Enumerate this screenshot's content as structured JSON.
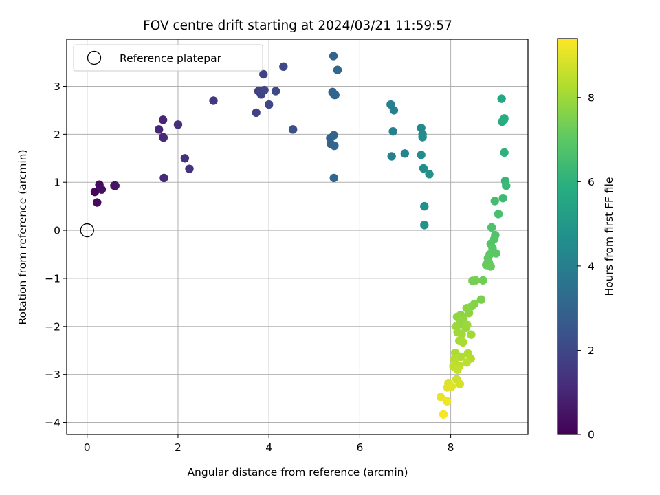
{
  "chart_data": {
    "type": "scatter",
    "title": "FOV centre drift starting at 2024/03/21 11:59:57",
    "xlabel": "Angular distance from reference (arcmin)",
    "ylabel": "Rotation from reference (arcmin)",
    "xlim": [
      -0.45,
      9.7
    ],
    "ylim": [
      -4.25,
      3.98
    ],
    "xticks": [
      0,
      2,
      4,
      6,
      8
    ],
    "yticks": [
      -4,
      -3,
      -2,
      -1,
      0,
      1,
      2,
      3
    ],
    "xtick_labels": [
      "0",
      "2",
      "4",
      "6",
      "8"
    ],
    "ytick_labels": [
      "−4",
      "−3",
      "−2",
      "−1",
      "0",
      "1",
      "2",
      "3"
    ],
    "grid": true,
    "legend": {
      "placement": "upper-left",
      "entries": [
        "Reference platepar"
      ]
    },
    "reference_point": {
      "x": 0,
      "y": 0,
      "label": "Reference platepar"
    },
    "colorbar": {
      "label": "Hours from first FF file",
      "colormap": "viridis",
      "range": [
        0,
        9.4
      ],
      "ticks": [
        0,
        2,
        4,
        6,
        8
      ],
      "tick_labels": [
        "0",
        "2",
        "4",
        "6",
        "8"
      ]
    },
    "points": [
      {
        "x": 0.17,
        "y": 0.8,
        "h": 0.15
      },
      {
        "x": 0.22,
        "y": 0.58,
        "h": 0.25
      },
      {
        "x": 0.27,
        "y": 0.95,
        "h": 0.3
      },
      {
        "x": 0.32,
        "y": 0.85,
        "h": 0.4
      },
      {
        "x": 0.6,
        "y": 0.93,
        "h": 0.5
      },
      {
        "x": 0.62,
        "y": 0.93,
        "h": 0.55
      },
      {
        "x": 1.58,
        "y": 2.1,
        "h": 1.0
      },
      {
        "x": 1.67,
        "y": 2.3,
        "h": 1.0
      },
      {
        "x": 1.67,
        "y": 1.94,
        "h": 1.05
      },
      {
        "x": 1.69,
        "y": 1.09,
        "h": 1.1
      },
      {
        "x": 1.68,
        "y": 1.93,
        "h": 1.1
      },
      {
        "x": 2.0,
        "y": 2.2,
        "h": 1.2
      },
      {
        "x": 2.15,
        "y": 1.5,
        "h": 1.3
      },
      {
        "x": 2.25,
        "y": 1.28,
        "h": 1.35
      },
      {
        "x": 2.78,
        "y": 2.7,
        "h": 1.5
      },
      {
        "x": 3.72,
        "y": 2.45,
        "h": 1.8
      },
      {
        "x": 3.77,
        "y": 2.9,
        "h": 1.85
      },
      {
        "x": 3.83,
        "y": 2.83,
        "h": 1.9
      },
      {
        "x": 3.9,
        "y": 2.92,
        "h": 1.95
      },
      {
        "x": 3.88,
        "y": 3.25,
        "h": 1.9
      },
      {
        "x": 4.0,
        "y": 2.62,
        "h": 2.0
      },
      {
        "x": 4.15,
        "y": 2.9,
        "h": 2.05
      },
      {
        "x": 4.32,
        "y": 3.41,
        "h": 2.1
      },
      {
        "x": 4.53,
        "y": 2.1,
        "h": 2.3
      },
      {
        "x": 5.35,
        "y": 1.92,
        "h": 2.9
      },
      {
        "x": 5.36,
        "y": 1.8,
        "h": 2.95
      },
      {
        "x": 5.4,
        "y": 2.88,
        "h": 3.0
      },
      {
        "x": 5.42,
        "y": 3.63,
        "h": 3.0
      },
      {
        "x": 5.44,
        "y": 2.82,
        "h": 3.05
      },
      {
        "x": 5.46,
        "y": 2.82,
        "h": 3.05
      },
      {
        "x": 5.43,
        "y": 1.98,
        "h": 3.05
      },
      {
        "x": 5.44,
        "y": 1.76,
        "h": 3.1
      },
      {
        "x": 5.43,
        "y": 1.09,
        "h": 3.1
      },
      {
        "x": 5.51,
        "y": 3.34,
        "h": 3.1
      },
      {
        "x": 6.68,
        "y": 2.62,
        "h": 4.0
      },
      {
        "x": 6.75,
        "y": 2.5,
        "h": 4.05
      },
      {
        "x": 6.73,
        "y": 2.06,
        "h": 4.1
      },
      {
        "x": 6.7,
        "y": 1.54,
        "h": 4.1
      },
      {
        "x": 6.99,
        "y": 1.6,
        "h": 4.2
      },
      {
        "x": 7.35,
        "y": 2.13,
        "h": 4.4
      },
      {
        "x": 7.38,
        "y": 2.0,
        "h": 4.45
      },
      {
        "x": 7.38,
        "y": 1.94,
        "h": 4.5
      },
      {
        "x": 7.35,
        "y": 1.57,
        "h": 4.55
      },
      {
        "x": 7.4,
        "y": 1.29,
        "h": 4.6
      },
      {
        "x": 7.53,
        "y": 1.17,
        "h": 4.7
      },
      {
        "x": 7.42,
        "y": 0.5,
        "h": 4.75
      },
      {
        "x": 7.42,
        "y": 0.11,
        "h": 4.8
      },
      {
        "x": 9.12,
        "y": 2.74,
        "h": 5.6
      },
      {
        "x": 9.13,
        "y": 2.26,
        "h": 5.8
      },
      {
        "x": 9.17,
        "y": 2.3,
        "h": 5.85
      },
      {
        "x": 9.18,
        "y": 2.33,
        "h": 5.85
      },
      {
        "x": 9.18,
        "y": 1.62,
        "h": 6.0
      },
      {
        "x": 9.2,
        "y": 1.03,
        "h": 6.2
      },
      {
        "x": 9.22,
        "y": 0.93,
        "h": 6.3
      },
      {
        "x": 9.15,
        "y": 0.67,
        "h": 6.4
      },
      {
        "x": 8.97,
        "y": 0.61,
        "h": 6.5
      },
      {
        "x": 9.05,
        "y": 0.34,
        "h": 6.6
      },
      {
        "x": 8.9,
        "y": 0.06,
        "h": 6.7
      },
      {
        "x": 8.98,
        "y": -0.1,
        "h": 6.75
      },
      {
        "x": 8.96,
        "y": -0.18,
        "h": 6.8
      },
      {
        "x": 8.88,
        "y": -0.28,
        "h": 6.85
      },
      {
        "x": 8.92,
        "y": -0.37,
        "h": 6.9
      },
      {
        "x": 8.86,
        "y": -0.5,
        "h": 6.95
      },
      {
        "x": 9.0,
        "y": -0.48,
        "h": 7.0
      },
      {
        "x": 8.82,
        "y": -0.58,
        "h": 7.05
      },
      {
        "x": 8.84,
        "y": -0.67,
        "h": 7.1
      },
      {
        "x": 8.78,
        "y": -0.72,
        "h": 7.15
      },
      {
        "x": 8.88,
        "y": -0.75,
        "h": 7.2
      },
      {
        "x": 8.71,
        "y": -1.04,
        "h": 7.3
      },
      {
        "x": 8.48,
        "y": -1.05,
        "h": 7.35
      },
      {
        "x": 8.55,
        "y": -1.04,
        "h": 7.4
      },
      {
        "x": 8.67,
        "y": -1.44,
        "h": 7.5
      },
      {
        "x": 8.52,
        "y": -1.53,
        "h": 7.6
      },
      {
        "x": 8.46,
        "y": -1.58,
        "h": 7.65
      },
      {
        "x": 8.35,
        "y": -1.62,
        "h": 7.7
      },
      {
        "x": 8.22,
        "y": -1.76,
        "h": 7.75
      },
      {
        "x": 8.14,
        "y": -1.8,
        "h": 7.8
      },
      {
        "x": 8.4,
        "y": -1.72,
        "h": 7.75
      },
      {
        "x": 8.2,
        "y": -1.95,
        "h": 7.85
      },
      {
        "x": 8.28,
        "y": -1.85,
        "h": 7.85
      },
      {
        "x": 8.33,
        "y": -2.03,
        "h": 7.9
      },
      {
        "x": 8.12,
        "y": -2.0,
        "h": 7.95
      },
      {
        "x": 8.36,
        "y": -1.97,
        "h": 7.95
      },
      {
        "x": 8.15,
        "y": -2.12,
        "h": 8.0
      },
      {
        "x": 8.24,
        "y": -2.16,
        "h": 8.05
      },
      {
        "x": 8.45,
        "y": -2.17,
        "h": 8.05
      },
      {
        "x": 8.19,
        "y": -2.3,
        "h": 8.1
      },
      {
        "x": 8.27,
        "y": -2.33,
        "h": 8.15
      },
      {
        "x": 8.1,
        "y": -2.55,
        "h": 8.2
      },
      {
        "x": 8.22,
        "y": -2.63,
        "h": 8.25
      },
      {
        "x": 8.38,
        "y": -2.56,
        "h": 8.25
      },
      {
        "x": 8.44,
        "y": -2.67,
        "h": 8.3
      },
      {
        "x": 8.08,
        "y": -2.68,
        "h": 8.35
      },
      {
        "x": 8.11,
        "y": -2.78,
        "h": 8.4
      },
      {
        "x": 8.19,
        "y": -2.82,
        "h": 8.45
      },
      {
        "x": 8.35,
        "y": -2.75,
        "h": 8.45
      },
      {
        "x": 8.06,
        "y": -2.83,
        "h": 8.5
      },
      {
        "x": 8.15,
        "y": -2.9,
        "h": 8.55
      },
      {
        "x": 8.13,
        "y": -3.1,
        "h": 8.7
      },
      {
        "x": 8.2,
        "y": -3.2,
        "h": 8.8
      },
      {
        "x": 7.95,
        "y": -3.18,
        "h": 8.9
      },
      {
        "x": 8.02,
        "y": -3.25,
        "h": 8.95
      },
      {
        "x": 7.93,
        "y": -3.27,
        "h": 9.0
      },
      {
        "x": 7.78,
        "y": -3.47,
        "h": 9.1
      },
      {
        "x": 7.92,
        "y": -3.56,
        "h": 9.2
      },
      {
        "x": 7.84,
        "y": -3.83,
        "h": 9.3
      }
    ]
  }
}
